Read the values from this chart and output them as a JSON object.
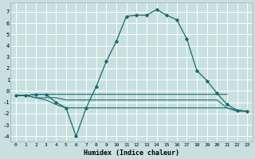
{
  "xlabel": "Humidex (Indice chaleur)",
  "xlim": [
    -0.5,
    23.5
  ],
  "ylim": [
    -4.5,
    7.8
  ],
  "xticks": [
    0,
    1,
    2,
    3,
    4,
    5,
    6,
    7,
    8,
    9,
    10,
    11,
    12,
    13,
    14,
    15,
    16,
    17,
    18,
    19,
    20,
    21,
    22,
    23
  ],
  "yticks": [
    -4,
    -3,
    -2,
    -1,
    0,
    1,
    2,
    3,
    4,
    5,
    6,
    7
  ],
  "background_color": "#c8e0e0",
  "grid_color": "#ffffff",
  "line_color": "#1a6b6b",
  "main_curve_x": [
    0,
    1,
    2,
    3,
    4,
    5,
    6,
    7,
    8,
    9,
    10,
    11,
    12,
    13,
    14,
    15,
    16,
    17,
    18,
    19,
    20,
    21,
    22,
    23
  ],
  "main_curve_y": [
    -0.4,
    -0.4,
    -0.3,
    -0.3,
    -1.0,
    -1.5,
    -4.0,
    -1.5,
    0.4,
    2.6,
    4.4,
    6.6,
    6.7,
    6.7,
    7.2,
    6.7,
    6.3,
    4.6,
    1.8,
    0.9,
    -0.2,
    -1.2,
    -1.7,
    -1.8
  ],
  "flat_lines": [
    {
      "x": [
        0,
        1,
        2,
        3,
        4,
        5,
        6,
        7,
        8,
        9,
        10,
        11,
        12,
        13,
        14,
        15,
        16,
        17,
        18,
        19,
        20,
        21
      ],
      "y": [
        -0.4,
        -0.4,
        -0.3,
        -0.3,
        -0.3,
        -0.3,
        -0.3,
        -0.3,
        -0.3,
        -0.3,
        -0.3,
        -0.3,
        -0.3,
        -0.3,
        -0.3,
        -0.3,
        -0.3,
        -0.3,
        -0.3,
        -0.3,
        -0.3,
        -0.3
      ]
    },
    {
      "x": [
        0,
        1,
        2,
        3,
        4,
        5,
        6,
        7,
        8,
        9,
        10,
        11,
        12,
        13,
        14,
        15,
        16,
        17,
        18,
        19,
        20,
        21,
        22,
        23
      ],
      "y": [
        -0.4,
        -0.4,
        -0.6,
        -0.6,
        -0.6,
        -0.8,
        -0.8,
        -0.8,
        -0.8,
        -0.8,
        -0.8,
        -0.8,
        -0.8,
        -0.8,
        -0.8,
        -0.8,
        -0.8,
        -0.8,
        -0.8,
        -0.8,
        -0.8,
        -1.5,
        -1.7,
        -1.8
      ]
    },
    {
      "x": [
        0,
        1,
        2,
        3,
        4,
        5,
        6,
        7,
        8,
        9,
        10,
        11,
        12,
        13,
        14,
        15,
        16,
        17,
        18,
        19,
        20,
        21,
        22,
        23
      ],
      "y": [
        -0.4,
        -0.4,
        -0.6,
        -0.8,
        -1.2,
        -1.5,
        -1.5,
        -1.5,
        -1.5,
        -1.5,
        -1.5,
        -1.5,
        -1.5,
        -1.5,
        -1.5,
        -1.5,
        -1.5,
        -1.5,
        -1.5,
        -1.5,
        -1.5,
        -1.5,
        -1.8,
        -1.8
      ]
    }
  ]
}
